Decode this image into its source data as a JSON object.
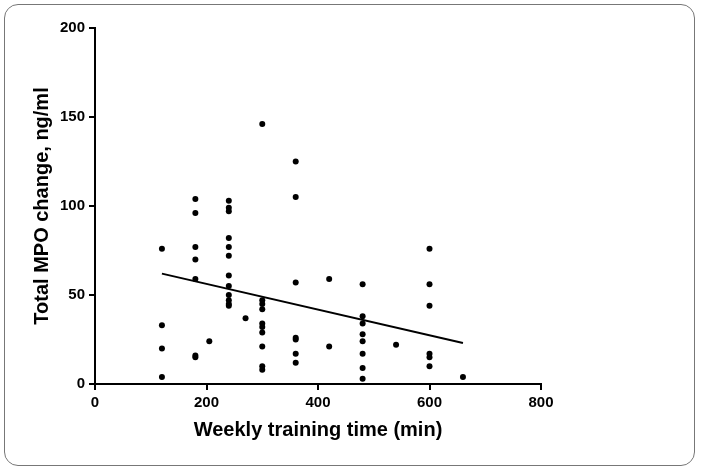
{
  "chart_data": {
    "type": "scatter",
    "x_label": "Weekly training time (min)",
    "y_label": "Total MPO change, ng/ml",
    "xlim": [
      0,
      800
    ],
    "xticks": [
      0,
      200,
      400,
      600,
      800
    ],
    "ylim": [
      0,
      200
    ],
    "yticks": [
      0,
      50,
      100,
      150,
      200
    ],
    "grid": false,
    "series": [
      {
        "type": "scatter",
        "color": "#000000",
        "marker": "circle",
        "x": [
          120,
          120,
          120,
          120,
          180,
          180,
          180,
          180,
          180,
          180,
          180,
          205,
          240,
          240,
          240,
          240,
          240,
          240,
          240,
          240,
          240,
          240,
          240,
          240,
          270,
          300,
          300,
          300,
          300,
          300,
          300,
          300,
          300,
          300,
          300,
          360,
          360,
          360,
          360,
          360,
          360,
          360,
          420,
          420,
          480,
          480,
          480,
          480,
          480,
          480,
          480,
          480,
          540,
          600,
          600,
          600,
          600,
          600,
          600,
          660
        ],
        "values": [
          76,
          33,
          20,
          4,
          104,
          96,
          77,
          70,
          59,
          16,
          15,
          24,
          103,
          99,
          97,
          82,
          77,
          72,
          61,
          55,
          50,
          47,
          45,
          44,
          37,
          146,
          47,
          45,
          42,
          34,
          32,
          29,
          21,
          10,
          8,
          125,
          105,
          57,
          26,
          25,
          17,
          12,
          59,
          21,
          56,
          38,
          34,
          28,
          24,
          17,
          9,
          3,
          22,
          76,
          56,
          44,
          17,
          15,
          10,
          4
        ]
      },
      {
        "type": "line",
        "color": "#000000",
        "line_style": "solid",
        "x": [
          120,
          660
        ],
        "values": [
          62,
          23
        ]
      }
    ]
  }
}
